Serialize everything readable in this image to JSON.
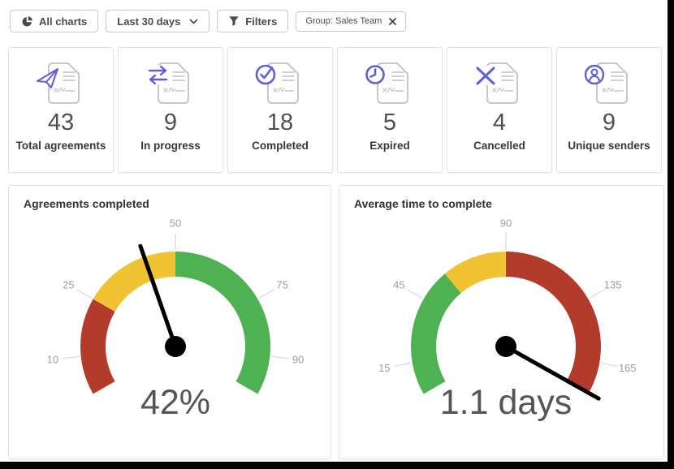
{
  "toolbar": {
    "all_charts_label": "All charts",
    "date_range_label": "Last 30 days",
    "filters_label": "Filters",
    "filter_chip_label": "Group: Sales Team"
  },
  "stat_cards": [
    {
      "icon": "send-document-icon",
      "value": "43",
      "label": "Total agreements"
    },
    {
      "icon": "in-progress-document-icon",
      "value": "9",
      "label": "In progress"
    },
    {
      "icon": "completed-document-icon",
      "value": "18",
      "label": "Completed"
    },
    {
      "icon": "expired-document-icon",
      "value": "5",
      "label": "Expired"
    },
    {
      "icon": "cancelled-document-icon",
      "value": "4",
      "label": "Cancelled"
    },
    {
      "icon": "unique-senders-document-icon",
      "value": "9",
      "label": "Unique senders"
    }
  ],
  "chart_data": [
    {
      "type": "gauge",
      "title": "Agreements completed",
      "min": 0,
      "max": 100,
      "start_angle": -120,
      "end_angle": 120,
      "ticks": [
        10,
        25,
        50,
        75,
        90
      ],
      "segments": [
        {
          "from": 0,
          "to": 25,
          "color": "#b23b2b"
        },
        {
          "from": 25,
          "to": 50,
          "color": "#f1c232"
        },
        {
          "from": 50,
          "to": 100,
          "color": "#4eb152"
        }
      ],
      "needle_value": 42,
      "display_value": "42%"
    },
    {
      "type": "gauge",
      "title": "Average time to complete",
      "min": 0,
      "max": 180,
      "start_angle": -120,
      "end_angle": 120,
      "ticks": [
        15,
        45,
        90,
        135,
        165
      ],
      "segments": [
        {
          "from": 0,
          "to": 60,
          "color": "#4eb152"
        },
        {
          "from": 60,
          "to": 90,
          "color": "#f1c232"
        },
        {
          "from": 90,
          "to": 180,
          "color": "#b23b2b"
        }
      ],
      "needle_value": 179.5,
      "display_value": "1.1 days"
    }
  ],
  "theme": {
    "icon_purple": "#5f5fd9",
    "doc_gray": "#c6c6cb",
    "tick_label_color": "#9e9e9e",
    "tick_line_color": "#cfcfcf",
    "gauge_value_color": "#555555",
    "needle_color": "#000000",
    "card_border": "#e3e3e3",
    "button_icon_color": "#4a4a4a"
  }
}
